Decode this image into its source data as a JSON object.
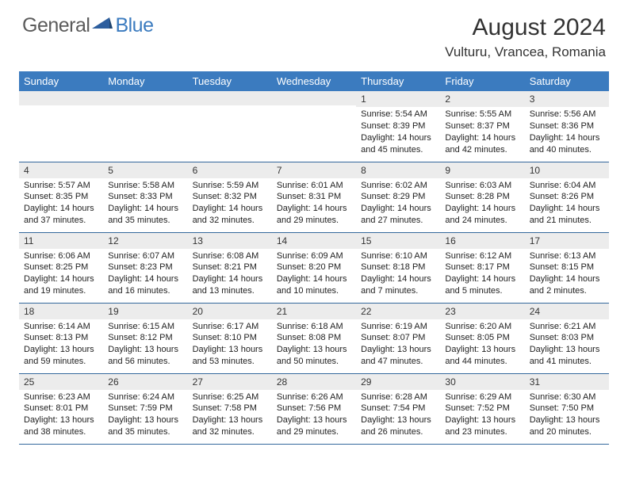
{
  "brand": {
    "name_part1": "General",
    "name_part2": "Blue",
    "text_color_1": "#5b5b5b",
    "text_color_2": "#3b7bbf",
    "shape_color": "#2d5e9e"
  },
  "header": {
    "month_title": "August 2024",
    "location": "Vulturu, Vrancea, Romania",
    "title_color": "#333333",
    "title_fontsize": 30,
    "location_fontsize": 17
  },
  "calendar": {
    "day_header_bg": "#3b7bbf",
    "day_header_fg": "#ffffff",
    "daynum_bg": "#ececec",
    "cell_border_color": "#34689c",
    "body_font_size": 11,
    "day_names": [
      "Sunday",
      "Monday",
      "Tuesday",
      "Wednesday",
      "Thursday",
      "Friday",
      "Saturday"
    ],
    "weeks": [
      [
        null,
        null,
        null,
        null,
        {
          "n": "1",
          "sunrise": "5:54 AM",
          "sunset": "8:39 PM",
          "daylight": "14 hours and 45 minutes."
        },
        {
          "n": "2",
          "sunrise": "5:55 AM",
          "sunset": "8:37 PM",
          "daylight": "14 hours and 42 minutes."
        },
        {
          "n": "3",
          "sunrise": "5:56 AM",
          "sunset": "8:36 PM",
          "daylight": "14 hours and 40 minutes."
        }
      ],
      [
        {
          "n": "4",
          "sunrise": "5:57 AM",
          "sunset": "8:35 PM",
          "daylight": "14 hours and 37 minutes."
        },
        {
          "n": "5",
          "sunrise": "5:58 AM",
          "sunset": "8:33 PM",
          "daylight": "14 hours and 35 minutes."
        },
        {
          "n": "6",
          "sunrise": "5:59 AM",
          "sunset": "8:32 PM",
          "daylight": "14 hours and 32 minutes."
        },
        {
          "n": "7",
          "sunrise": "6:01 AM",
          "sunset": "8:31 PM",
          "daylight": "14 hours and 29 minutes."
        },
        {
          "n": "8",
          "sunrise": "6:02 AM",
          "sunset": "8:29 PM",
          "daylight": "14 hours and 27 minutes."
        },
        {
          "n": "9",
          "sunrise": "6:03 AM",
          "sunset": "8:28 PM",
          "daylight": "14 hours and 24 minutes."
        },
        {
          "n": "10",
          "sunrise": "6:04 AM",
          "sunset": "8:26 PM",
          "daylight": "14 hours and 21 minutes."
        }
      ],
      [
        {
          "n": "11",
          "sunrise": "6:06 AM",
          "sunset": "8:25 PM",
          "daylight": "14 hours and 19 minutes."
        },
        {
          "n": "12",
          "sunrise": "6:07 AM",
          "sunset": "8:23 PM",
          "daylight": "14 hours and 16 minutes."
        },
        {
          "n": "13",
          "sunrise": "6:08 AM",
          "sunset": "8:21 PM",
          "daylight": "14 hours and 13 minutes."
        },
        {
          "n": "14",
          "sunrise": "6:09 AM",
          "sunset": "8:20 PM",
          "daylight": "14 hours and 10 minutes."
        },
        {
          "n": "15",
          "sunrise": "6:10 AM",
          "sunset": "8:18 PM",
          "daylight": "14 hours and 7 minutes."
        },
        {
          "n": "16",
          "sunrise": "6:12 AM",
          "sunset": "8:17 PM",
          "daylight": "14 hours and 5 minutes."
        },
        {
          "n": "17",
          "sunrise": "6:13 AM",
          "sunset": "8:15 PM",
          "daylight": "14 hours and 2 minutes."
        }
      ],
      [
        {
          "n": "18",
          "sunrise": "6:14 AM",
          "sunset": "8:13 PM",
          "daylight": "13 hours and 59 minutes."
        },
        {
          "n": "19",
          "sunrise": "6:15 AM",
          "sunset": "8:12 PM",
          "daylight": "13 hours and 56 minutes."
        },
        {
          "n": "20",
          "sunrise": "6:17 AM",
          "sunset": "8:10 PM",
          "daylight": "13 hours and 53 minutes."
        },
        {
          "n": "21",
          "sunrise": "6:18 AM",
          "sunset": "8:08 PM",
          "daylight": "13 hours and 50 minutes."
        },
        {
          "n": "22",
          "sunrise": "6:19 AM",
          "sunset": "8:07 PM",
          "daylight": "13 hours and 47 minutes."
        },
        {
          "n": "23",
          "sunrise": "6:20 AM",
          "sunset": "8:05 PM",
          "daylight": "13 hours and 44 minutes."
        },
        {
          "n": "24",
          "sunrise": "6:21 AM",
          "sunset": "8:03 PM",
          "daylight": "13 hours and 41 minutes."
        }
      ],
      [
        {
          "n": "25",
          "sunrise": "6:23 AM",
          "sunset": "8:01 PM",
          "daylight": "13 hours and 38 minutes."
        },
        {
          "n": "26",
          "sunrise": "6:24 AM",
          "sunset": "7:59 PM",
          "daylight": "13 hours and 35 minutes."
        },
        {
          "n": "27",
          "sunrise": "6:25 AM",
          "sunset": "7:58 PM",
          "daylight": "13 hours and 32 minutes."
        },
        {
          "n": "28",
          "sunrise": "6:26 AM",
          "sunset": "7:56 PM",
          "daylight": "13 hours and 29 minutes."
        },
        {
          "n": "29",
          "sunrise": "6:28 AM",
          "sunset": "7:54 PM",
          "daylight": "13 hours and 26 minutes."
        },
        {
          "n": "30",
          "sunrise": "6:29 AM",
          "sunset": "7:52 PM",
          "daylight": "13 hours and 23 minutes."
        },
        {
          "n": "31",
          "sunrise": "6:30 AM",
          "sunset": "7:50 PM",
          "daylight": "13 hours and 20 minutes."
        }
      ]
    ]
  }
}
